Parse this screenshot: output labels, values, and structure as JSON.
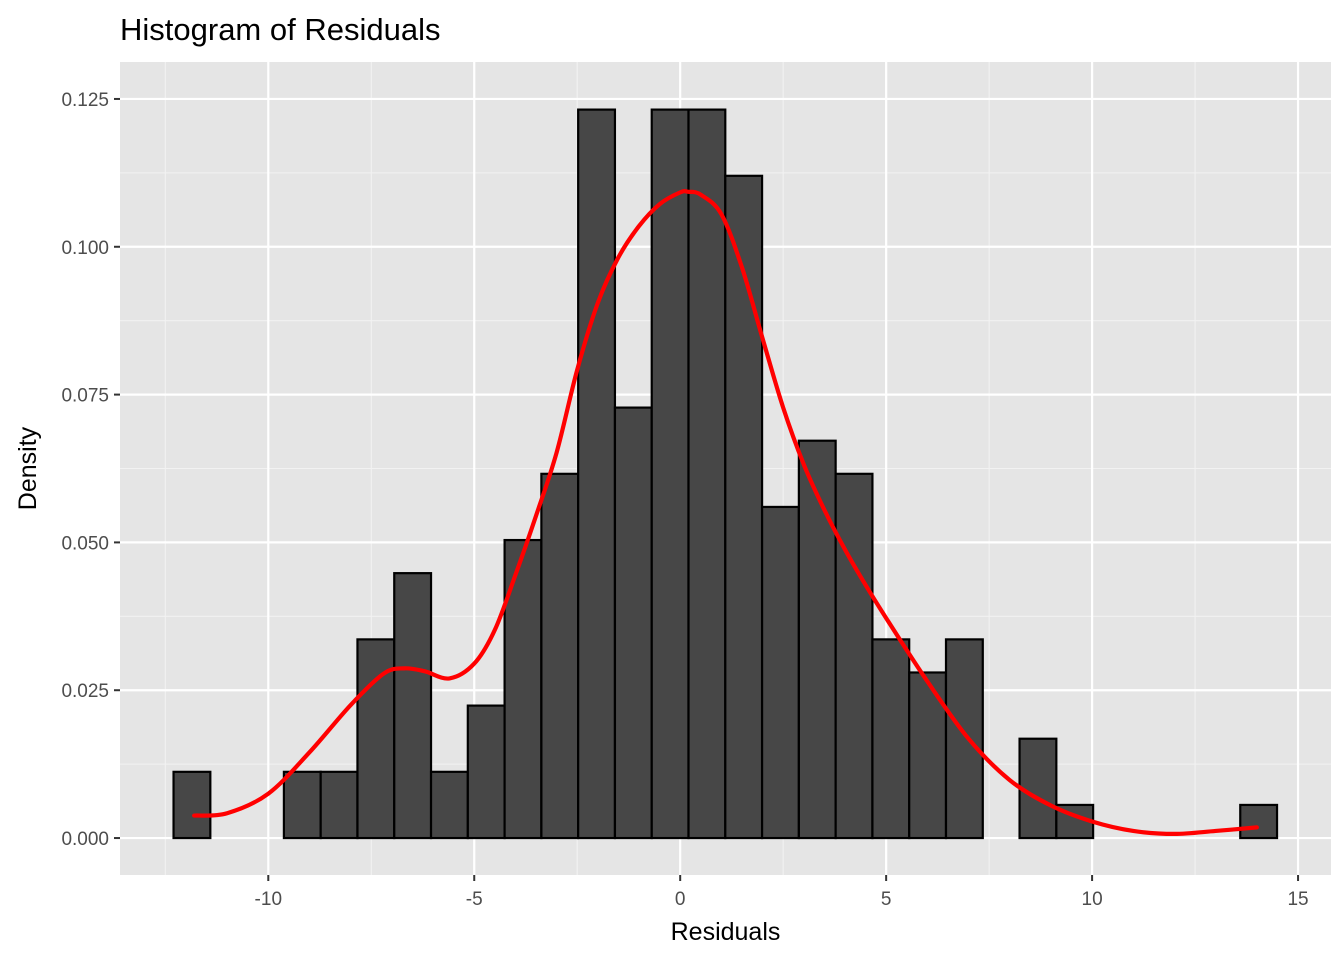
{
  "chart_data": {
    "type": "bar",
    "title": "Histogram of Residuals",
    "xlabel": "Residuals",
    "ylabel": "Density",
    "xlim": [
      -13.6,
      15.8
    ],
    "ylim": [
      -0.00625,
      0.13125
    ],
    "xticks": [
      -10,
      -5,
      0,
      5,
      10,
      15
    ],
    "xtick_labels": [
      "-10",
      "-5",
      "0",
      "5",
      "10",
      "15"
    ],
    "yticks": [
      0,
      0.025,
      0.05,
      0.075,
      0.1,
      0.125
    ],
    "ytick_labels": [
      "0.000",
      "0.025",
      "0.050",
      "0.075",
      "0.100",
      "0.125"
    ],
    "grid": true,
    "background_color": "#E5E5E5",
    "bar_fill": "#474747",
    "bar_stroke": "#000000",
    "density_color": "#FF0000",
    "bins": {
      "left_edge": -12.3,
      "width": 0.893,
      "values": [
        0.0112,
        0,
        0,
        0.0112,
        0.0112,
        0.0336,
        0.0448,
        0.0112,
        0.0224,
        0.0504,
        0.0616,
        0.1232,
        0.0728,
        0.1232,
        0.1232,
        0.112,
        0.056,
        0.0672,
        0.0616,
        0.0336,
        0.028,
        0.0336,
        0,
        0.0168,
        0.0056,
        0,
        0,
        0,
        0,
        0.0056
      ]
    },
    "density_curve": {
      "x": [
        -11.8,
        -11.0,
        -10.0,
        -9.0,
        -8.0,
        -7.2,
        -6.7,
        -6.2,
        -5.6,
        -5.0,
        -4.5,
        -4.0,
        -3.5,
        -3.0,
        -2.5,
        -2.0,
        -1.5,
        -1.0,
        -0.5,
        0.0,
        0.2,
        0.5,
        1.0,
        1.5,
        2.0,
        2.5,
        3.0,
        3.5,
        4.0,
        4.5,
        5.0,
        6.0,
        7.0,
        8.0,
        9.0,
        10.0,
        11.0,
        12.0,
        13.0,
        14.0
      ],
      "y": [
        0.0038,
        0.0042,
        0.0075,
        0.0145,
        0.0225,
        0.0278,
        0.0287,
        0.0282,
        0.027,
        0.0295,
        0.0352,
        0.0445,
        0.0545,
        0.0652,
        0.0792,
        0.0905,
        0.0982,
        0.1035,
        0.1072,
        0.1092,
        0.1093,
        0.1088,
        0.1055,
        0.0965,
        0.0845,
        0.0728,
        0.0632,
        0.0555,
        0.0488,
        0.0428,
        0.0372,
        0.0265,
        0.0168,
        0.0098,
        0.0055,
        0.0028,
        0.0012,
        0.0007,
        0.0012,
        0.0018
      ]
    }
  }
}
